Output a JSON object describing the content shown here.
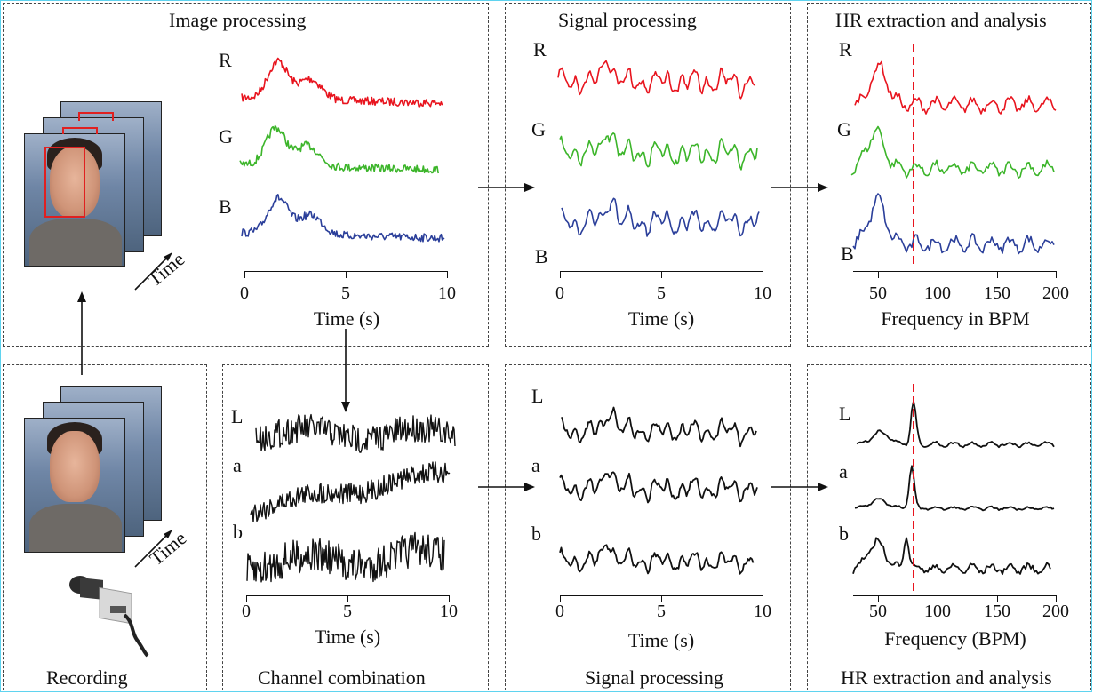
{
  "titles": {
    "image_processing": "Image processing",
    "signal_processing_top": "Signal processing",
    "hr_top": "HR extraction and analysis",
    "recording": "Recording",
    "channel_combination": "Channel combination",
    "signal_processing_bottom": "Signal processing",
    "hr_bottom": "HR extraction and analysis"
  },
  "frames_time_label": "Time",
  "channel_labels": {
    "R": "R",
    "G": "G",
    "B": "B",
    "L": "L",
    "a": "a",
    "b": "b"
  },
  "time_axis": {
    "label": "Time (s)",
    "ticks": [
      "0",
      "5",
      "10"
    ]
  },
  "freq_axis_top": {
    "label": "Frequency in BPM",
    "ticks": [
      "50",
      "100",
      "150",
      "200"
    ]
  },
  "freq_axis_bottom": {
    "label": "Frequency (BPM)",
    "ticks": [
      "50",
      "100",
      "150",
      "200"
    ]
  },
  "colors": {
    "R": "#e8141e",
    "G": "#3cb52a",
    "B": "#2b3f9a",
    "L": "#111111",
    "hr_line": "#e8141e",
    "frame_border": "#5fd3ef"
  },
  "hr_marker_bpm": 80
}
